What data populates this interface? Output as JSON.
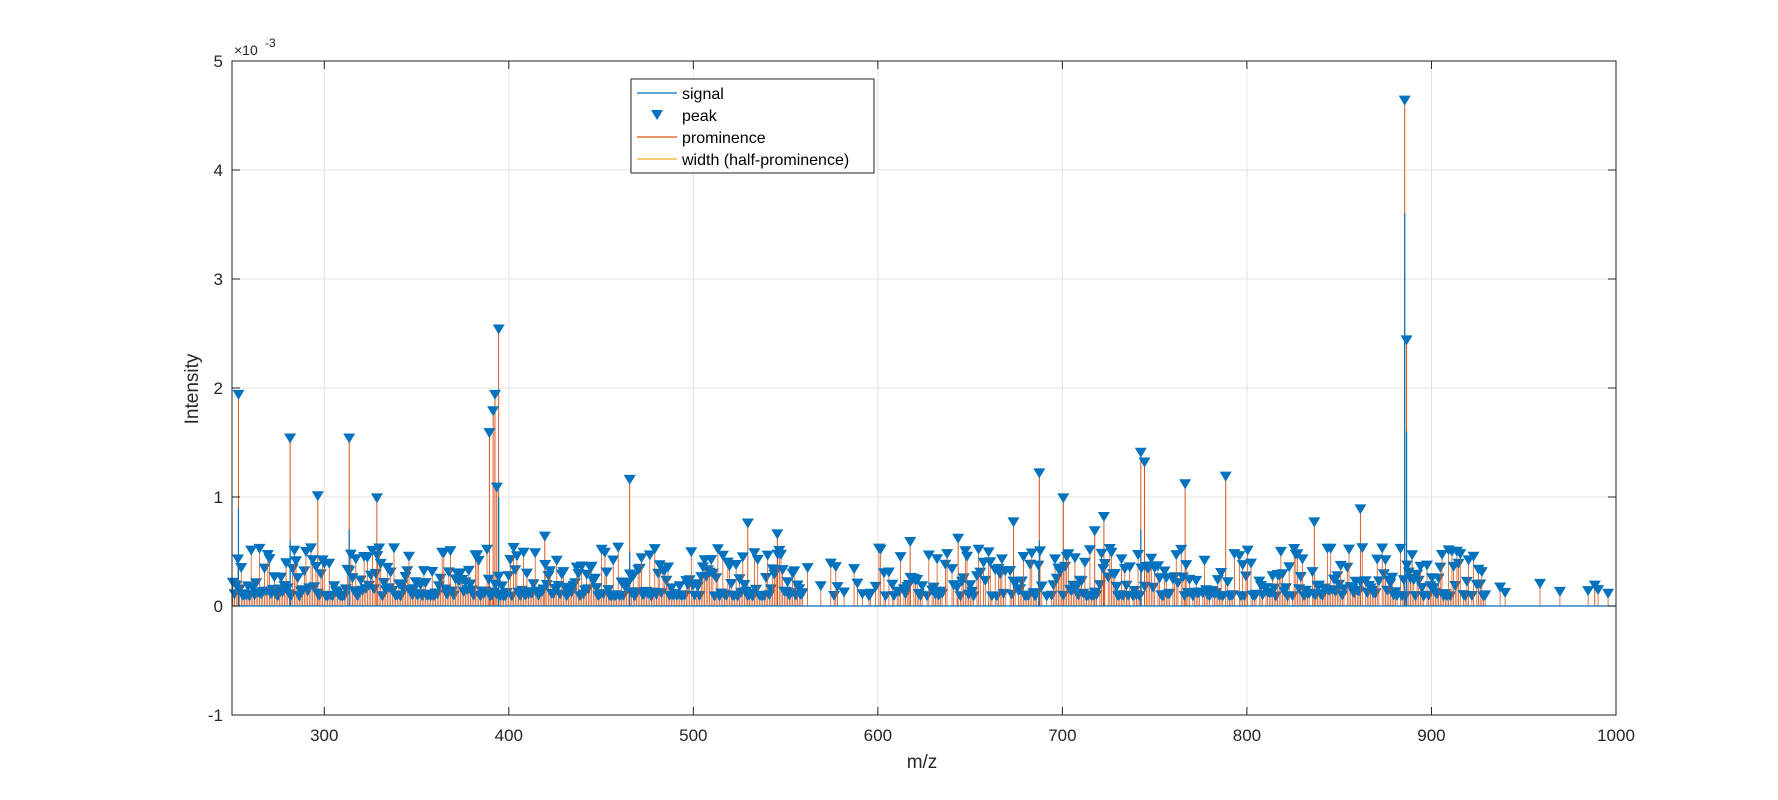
{
  "chart_data": {
    "type": "line",
    "xlabel": "m/z",
    "ylabel": "Intensity",
    "xlim": [
      250,
      1000
    ],
    "ylim": [
      -1,
      5
    ],
    "y_exponent_label": "×10",
    "y_exponent_power": "-3",
    "x_ticks": [
      300,
      400,
      500,
      600,
      700,
      800,
      900,
      1000
    ],
    "x_tick_labels": [
      "300",
      "400",
      "500",
      "600",
      "700",
      "800",
      "900",
      "1000"
    ],
    "y_ticks": [
      -1,
      0,
      1,
      2,
      3,
      4,
      5
    ],
    "y_tick_labels": [
      "-1",
      "0",
      "1",
      "2",
      "3",
      "4",
      "5"
    ],
    "grid": true,
    "legend_position": "top-center",
    "legend": [
      "signal",
      "peak",
      "prominence",
      "width (half-prominence)"
    ],
    "colors": {
      "signal": "#0072BD",
      "peak": "#0072BD",
      "prominence": "#D95319",
      "width": "#EDB120",
      "grid": "#e3e3e3",
      "axes": "#262626"
    },
    "series": [
      {
        "name": "peak",
        "x": [
          253.5,
          281.5,
          296.5,
          313.5,
          328.5,
          389.5,
          391.5,
          392.5,
          393.5,
          394.5,
          419.5,
          465.5,
          529.5,
          545.5,
          617.5,
          643.5,
          673.5,
          687.5,
          700.5,
          717.5,
          722.5,
          742.5,
          744.5,
          766.5,
          788.5,
          836.5,
          861.5,
          885.5,
          886.5,
          988.5
        ],
        "y": [
          1.9,
          1.5,
          0.97,
          1.5,
          0.95,
          1.55,
          1.75,
          1.9,
          1.05,
          2.5,
          0.6,
          1.12,
          0.72,
          0.62,
          0.55,
          0.58,
          0.73,
          1.18,
          0.95,
          0.65,
          0.78,
          1.37,
          1.28,
          1.08,
          1.15,
          0.73,
          0.85,
          4.6,
          2.4,
          0.15
        ]
      },
      {
        "name": "prominence",
        "x": [
          253.5,
          281.5,
          296.5,
          313.5,
          328.5,
          389.5,
          391.5,
          392.5,
          393.5,
          394.5,
          419.5,
          465.5,
          529.5,
          545.5,
          617.5,
          643.5,
          673.5,
          687.5,
          700.5,
          717.5,
          722.5,
          742.5,
          744.5,
          766.5,
          788.5,
          836.5,
          861.5,
          885.5,
          886.5,
          988.5
        ],
        "y": [
          1.9,
          1.5,
          0.97,
          1.5,
          0.95,
          1.55,
          1.75,
          1.9,
          1.05,
          2.5,
          0.6,
          1.12,
          0.72,
          0.62,
          0.55,
          0.58,
          0.73,
          1.18,
          0.95,
          0.65,
          0.78,
          1.37,
          1.28,
          1.08,
          1.15,
          0.73,
          0.85,
          4.6,
          2.4,
          0.15
        ]
      },
      {
        "name": "signal",
        "x": [
          250,
          253.5,
          281.5,
          313.5,
          394.5,
          465.5,
          687.5,
          742.5,
          885.5,
          886.5,
          1000
        ],
        "y": [
          0.1,
          0.9,
          0.6,
          0.7,
          1.0,
          0.5,
          0.6,
          0.7,
          3.6,
          1.6,
          0.0
        ]
      }
    ]
  }
}
